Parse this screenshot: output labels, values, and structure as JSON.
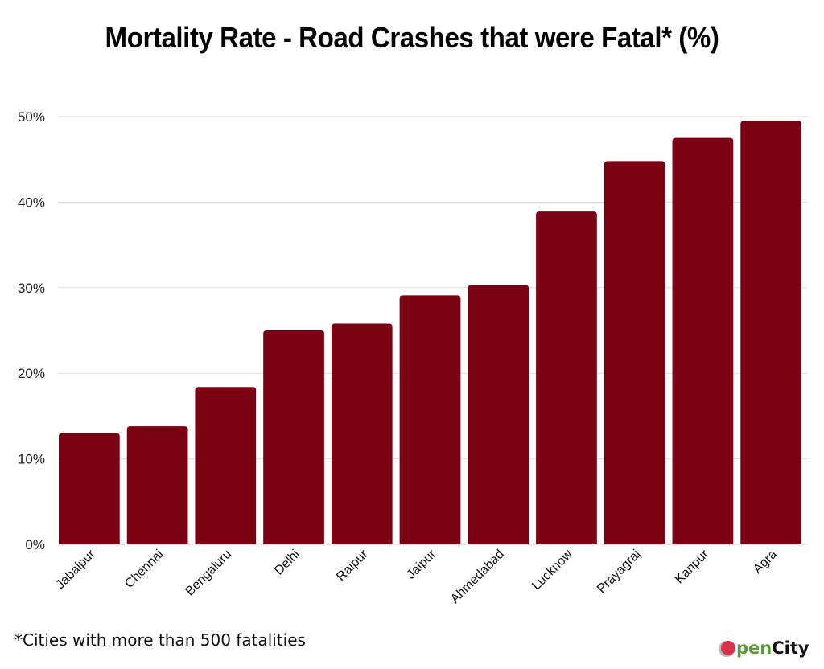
{
  "chart_data": {
    "type": "bar",
    "title": "Mortality Rate - Road Crashes that were Fatal* (%)",
    "xlabel": "",
    "ylabel": "",
    "categories": [
      "Jabalpur",
      "Chennai",
      "Bengaluru",
      "Delhi",
      "Raipur",
      "Jaipur",
      "Ahmedabad",
      "Lucknow",
      "Prayagraj",
      "Kanpur",
      "Agra"
    ],
    "values": [
      13.0,
      13.8,
      18.4,
      25.0,
      25.8,
      29.1,
      30.3,
      38.9,
      44.8,
      47.5,
      49.5
    ],
    "unit": "%",
    "ylim": [
      0,
      50
    ],
    "yticks": [
      0,
      10,
      20,
      30,
      40,
      50
    ],
    "ytick_labels": [
      "0%",
      "10%",
      "20%",
      "30%",
      "40%",
      "50%"
    ],
    "grid": true,
    "legend": "none",
    "bar_color": "#7b0213",
    "footnote": "*Cities with more than 500 fatalities"
  },
  "branding": {
    "logo_o": "O",
    "logo_pen": "pen",
    "logo_city": "City",
    "colors": {
      "red": "#d7334b",
      "green": "#5a9a3d"
    }
  }
}
